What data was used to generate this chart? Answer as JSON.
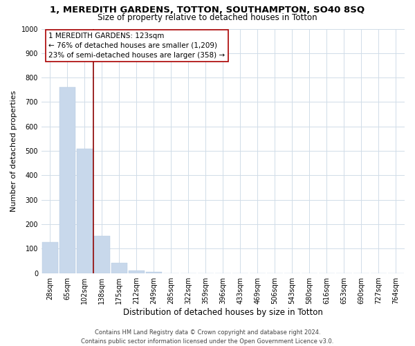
{
  "title": "1, MEREDITH GARDENS, TOTTON, SOUTHAMPTON, SO40 8SQ",
  "subtitle": "Size of property relative to detached houses in Totton",
  "xlabel": "Distribution of detached houses by size in Totton",
  "ylabel": "Number of detached properties",
  "bar_labels": [
    "28sqm",
    "65sqm",
    "102sqm",
    "138sqm",
    "175sqm",
    "212sqm",
    "249sqm",
    "285sqm",
    "322sqm",
    "359sqm",
    "396sqm",
    "433sqm",
    "469sqm",
    "506sqm",
    "543sqm",
    "580sqm",
    "616sqm",
    "653sqm",
    "690sqm",
    "727sqm",
    "764sqm"
  ],
  "bar_values": [
    127,
    760,
    510,
    152,
    40,
    10,
    5,
    0,
    0,
    0,
    0,
    0,
    0,
    0,
    0,
    0,
    0,
    0,
    0,
    0,
    0
  ],
  "bar_color": "#c8d8eb",
  "bar_edge_color": "#b0c8e0",
  "vline_x": 2.5,
  "vline_color": "#8b0000",
  "ylim": [
    0,
    1000
  ],
  "yticks": [
    0,
    100,
    200,
    300,
    400,
    500,
    600,
    700,
    800,
    900,
    1000
  ],
  "annotation_title": "1 MEREDITH GARDENS: 123sqm",
  "annotation_line1": "← 76% of detached houses are smaller (1,209)",
  "annotation_line2": "23% of semi-detached houses are larger (358) →",
  "annotation_box_color": "#ffffff",
  "annotation_box_edge": "#aa0000",
  "footer1": "Contains HM Land Registry data © Crown copyright and database right 2024.",
  "footer2": "Contains public sector information licensed under the Open Government Licence v3.0.",
  "title_fontsize": 9.5,
  "subtitle_fontsize": 8.5,
  "xlabel_fontsize": 8.5,
  "ylabel_fontsize": 8,
  "tick_fontsize": 7,
  "annotation_fontsize": 7.5,
  "footer_fontsize": 6,
  "background_color": "#ffffff",
  "grid_color": "#d0dce8"
}
